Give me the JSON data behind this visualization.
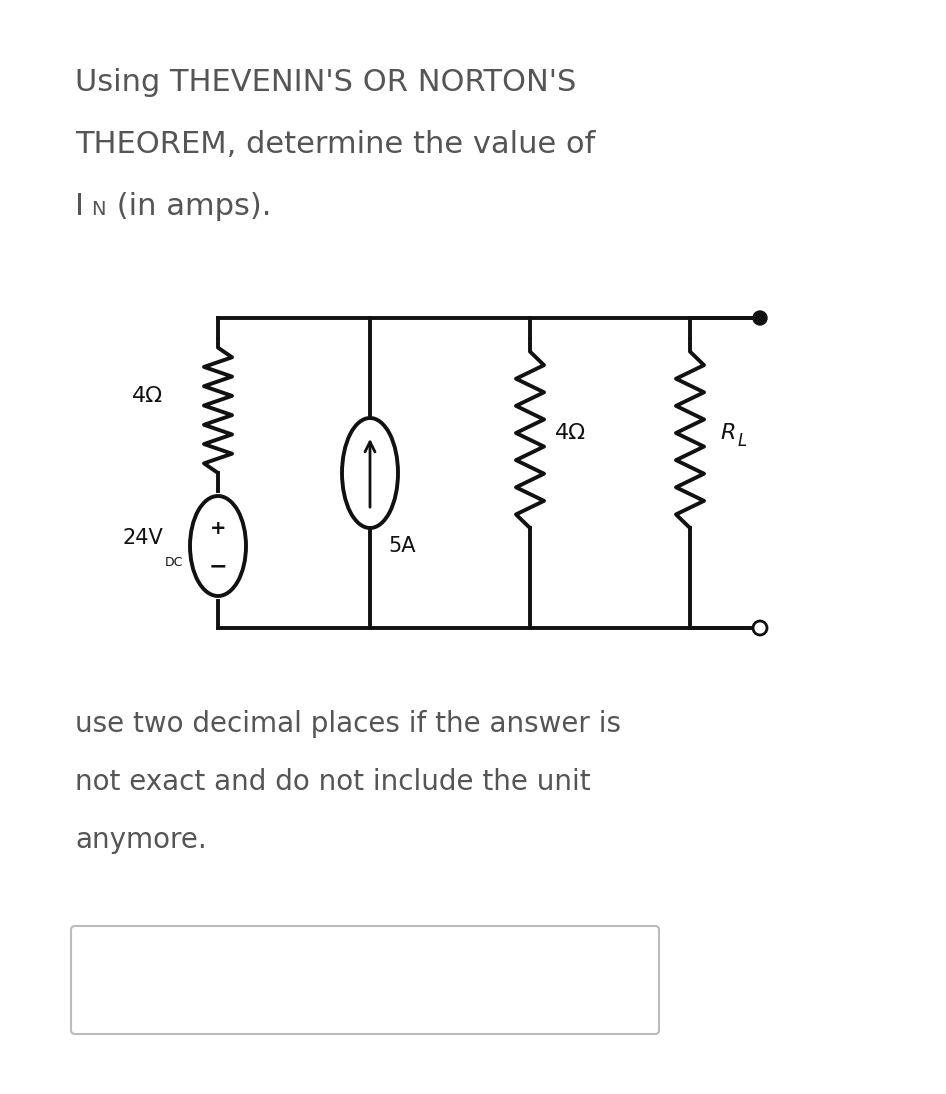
{
  "title_line1": "Using THEVENIN'S OR NORTON'S",
  "title_line2": "THEOREM, determine the value of",
  "title_line3_main": "I",
  "title_line3_sub": "N",
  "title_line3_rest": " (in amps).",
  "instruction_line1": "use two decimal places if the answer is",
  "instruction_line2": "not exact and do not include the unit",
  "instruction_line3": "anymore.",
  "label_4ohm_left": "4Ω",
  "label_24v": "24V",
  "label_dc": "DC",
  "label_5A": "5A",
  "label_4ohm_mid": "4Ω",
  "label_RL_r": "R",
  "label_RL_l": "L",
  "bg_color": "#ffffff",
  "text_color": "#555555",
  "circuit_color": "#111111",
  "circuit_lw": 2.8,
  "fig_width": 9.46,
  "fig_height": 10.94,
  "title_fontsize": 22,
  "instr_fontsize": 20
}
